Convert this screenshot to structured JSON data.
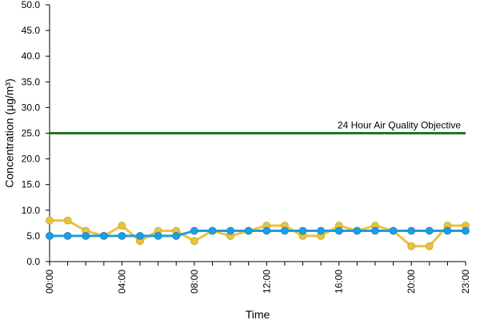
{
  "chart_data": {
    "type": "line",
    "xlabel": "Time",
    "ylabel": "Concentration (µg/m³)",
    "ylim": [
      0,
      50
    ],
    "yticks": [
      "0.0",
      "5.0",
      "10.0",
      "15.0",
      "20.0",
      "25.0",
      "30.0",
      "35.0",
      "40.0",
      "45.0",
      "50.0"
    ],
    "xlim": [
      0,
      23
    ],
    "xticks": [
      {
        "hour": 0,
        "label": "00:00"
      },
      {
        "hour": 4,
        "label": "04:00"
      },
      {
        "hour": 8,
        "label": "08:00"
      },
      {
        "hour": 12,
        "label": "12:00"
      },
      {
        "hour": 16,
        "label": "16:00"
      },
      {
        "hour": 20,
        "label": "20:00"
      },
      {
        "hour": 23,
        "label": "23:00"
      }
    ],
    "x": [
      0,
      1,
      2,
      3,
      4,
      5,
      6,
      7,
      8,
      9,
      10,
      11,
      12,
      13,
      14,
      15,
      16,
      17,
      18,
      19,
      20,
      21,
      22,
      23
    ],
    "series": [
      {
        "color": "#e8c340",
        "values": [
          8,
          8,
          6,
          5,
          7,
          4,
          6,
          6,
          4,
          6,
          5,
          6,
          7,
          7,
          5,
          5,
          7,
          6,
          7,
          6,
          3,
          3,
          7,
          7
        ]
      },
      {
        "color": "#1f9de0",
        "values": [
          5,
          5,
          5,
          5,
          5,
          5,
          5,
          5,
          6,
          6,
          6,
          6,
          6,
          6,
          6,
          6,
          6,
          6,
          6,
          6,
          6,
          6,
          6,
          6
        ]
      }
    ],
    "reference_line": {
      "value": 25,
      "label": "24 Hour Air Quality Objective",
      "color": "#1a7a1a"
    },
    "grid": false
  }
}
